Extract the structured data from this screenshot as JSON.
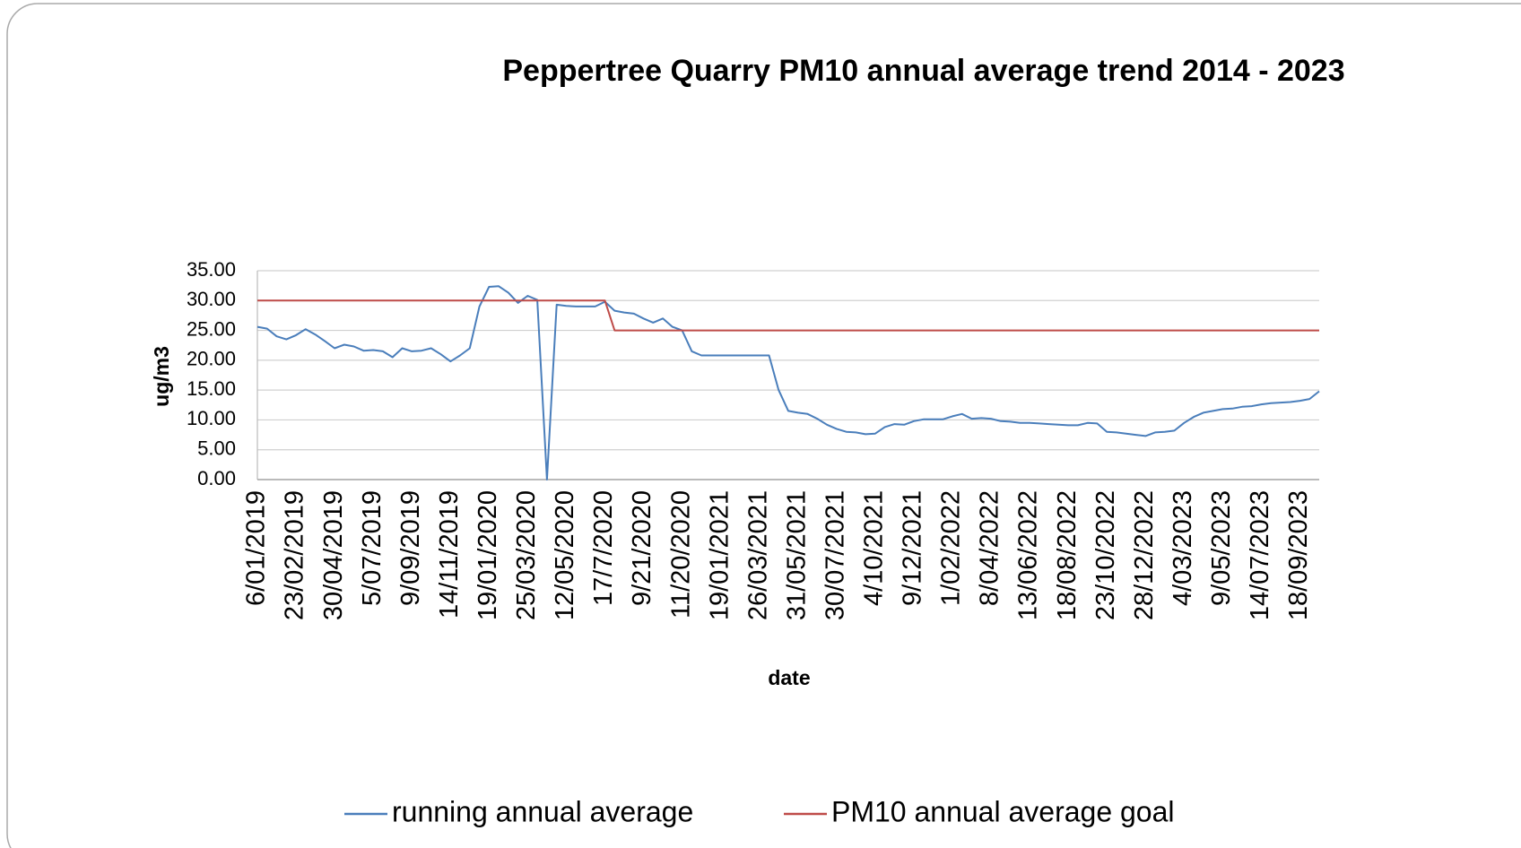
{
  "chart_data": {
    "type": "line",
    "title": "Peppertree Quarry PM10 annual average trend  2014 - 2023",
    "xlabel": "date",
    "ylabel": "ug/m3",
    "categories": [
      "6/01/2019",
      null,
      null,
      null,
      "23/02/2019",
      null,
      null,
      null,
      "30/04/2019",
      null,
      null,
      null,
      "5/07/2019",
      null,
      null,
      null,
      "9/09/2019",
      null,
      null,
      null,
      "14/11/2019",
      null,
      null,
      null,
      "19/01/2020",
      null,
      null,
      null,
      "25/03/2020",
      null,
      null,
      null,
      "12/05/2020",
      null,
      null,
      null,
      "17/7/2020",
      null,
      null,
      null,
      "9/21/2020",
      null,
      null,
      null,
      "11/20/2020",
      null,
      null,
      null,
      "19/01/2021",
      null,
      null,
      null,
      "26/03/2021",
      null,
      null,
      null,
      "31/05/2021",
      null,
      null,
      null,
      "30/07/2021",
      null,
      null,
      null,
      "4/10/2021",
      null,
      null,
      null,
      "9/12/2021",
      null,
      null,
      null,
      "1/02/2022",
      null,
      null,
      null,
      "8/04/2022",
      null,
      null,
      null,
      "13/06/2022",
      null,
      null,
      null,
      "18/08/2022",
      null,
      null,
      null,
      "23/10/2022",
      null,
      null,
      null,
      "28/12/2022",
      null,
      null,
      null,
      "4/03/2023",
      null,
      null,
      null,
      "9/05/2023",
      null,
      null,
      null,
      "14/07/2023",
      null,
      null,
      null,
      "18/09/2023",
      null,
      null
    ],
    "series": [
      {
        "name": "running annual average",
        "color": "#4a7ebb",
        "values": [
          25.6,
          25.3,
          24.0,
          23.5,
          24.2,
          25.2,
          24.3,
          23.2,
          22.0,
          22.6,
          22.3,
          21.6,
          21.7,
          21.5,
          20.5,
          22.0,
          21.5,
          21.6,
          22.0,
          21.0,
          19.8,
          20.8,
          22.0,
          29.0,
          32.3,
          32.4,
          31.3,
          29.6,
          30.8,
          30.1,
          0.0,
          29.3,
          29.1,
          29.0,
          29.0,
          29.0,
          29.8,
          28.3,
          28.0,
          27.8,
          27.0,
          26.3,
          27.0,
          25.6,
          25.0,
          21.5,
          20.8,
          20.8,
          20.8,
          20.8,
          20.8,
          20.8,
          20.8,
          20.8,
          15.0,
          11.5,
          11.2,
          11.0,
          10.2,
          9.2,
          8.5,
          8.0,
          7.9,
          7.6,
          7.7,
          8.8,
          9.3,
          9.2,
          9.8,
          10.1,
          10.1,
          10.1,
          10.6,
          11.0,
          10.2,
          10.3,
          10.2,
          9.8,
          9.7,
          9.5,
          9.5,
          9.4,
          9.3,
          9.2,
          9.1,
          9.1,
          9.5,
          9.4,
          8.0,
          7.9,
          7.7,
          7.5,
          7.3,
          7.9,
          8.0,
          8.2,
          9.5,
          10.5,
          11.2,
          11.5,
          11.8,
          11.9,
          12.2,
          12.3,
          12.6,
          12.8,
          12.9,
          13.0,
          13.2,
          13.5,
          14.8
        ]
      },
      {
        "name": "PM10 annual average goal",
        "color": "#be4b48",
        "values": [
          30,
          30,
          30,
          30,
          30,
          30,
          30,
          30,
          30,
          30,
          30,
          30,
          30,
          30,
          30,
          30,
          30,
          30,
          30,
          30,
          30,
          30,
          30,
          30,
          30,
          30,
          30,
          30,
          30,
          30,
          30,
          30,
          30,
          30,
          30,
          30,
          30,
          25,
          25,
          25,
          25,
          25,
          25,
          25,
          25,
          25,
          25,
          25,
          25,
          25,
          25,
          25,
          25,
          25,
          25,
          25,
          25,
          25,
          25,
          25,
          25,
          25,
          25,
          25,
          25,
          25,
          25,
          25,
          25,
          25,
          25,
          25,
          25,
          25,
          25,
          25,
          25,
          25,
          25,
          25,
          25,
          25,
          25,
          25,
          25,
          25,
          25,
          25,
          25,
          25,
          25,
          25,
          25,
          25,
          25,
          25,
          25,
          25,
          25,
          25,
          25,
          25,
          25,
          25,
          25,
          25,
          25,
          25,
          25,
          25,
          25
        ]
      }
    ],
    "ylim": [
      0,
      35
    ],
    "yticks": [
      {
        "value": 0,
        "label": "0.00"
      },
      {
        "value": 5,
        "label": "5.00"
      },
      {
        "value": 10,
        "label": "10.00"
      },
      {
        "value": 15,
        "label": "15.00"
      },
      {
        "value": 20,
        "label": "20.00"
      },
      {
        "value": 25,
        "label": "25.00"
      },
      {
        "value": 30,
        "label": "30.00"
      },
      {
        "value": 35,
        "label": "35.00"
      }
    ],
    "grid": true,
    "legend": "bottom"
  }
}
